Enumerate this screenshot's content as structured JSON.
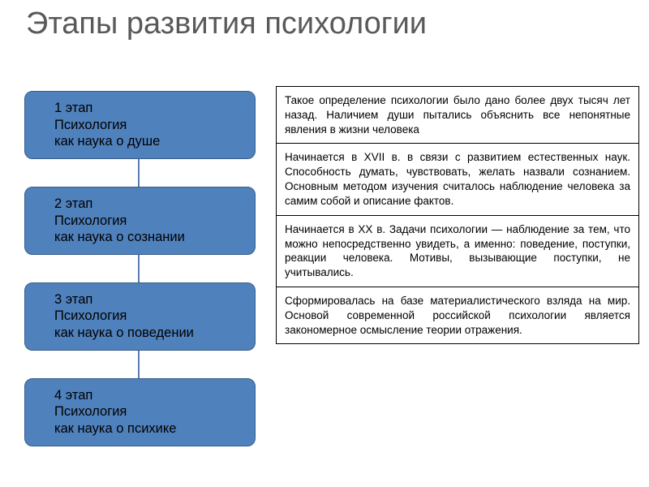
{
  "title": "Этапы развития психологии",
  "stages": [
    {
      "label_line1": "1 этап",
      "label_line2": "Психология",
      "label_line3": "как наука о душе"
    },
    {
      "label_line1": "2 этап",
      "label_line2": "Психология",
      "label_line3": "как наука о сознании"
    },
    {
      "label_line1": "3 этап",
      "label_line2": "Психология",
      "label_line3": "как наука о поведении"
    },
    {
      "label_line1": "4 этап",
      "label_line2": "Психология",
      "label_line3": "как наука о психике"
    }
  ],
  "descriptions": [
    "Такое определение психологии было дано более двух тысяч лет назад. Наличием души пытались объяснить все непонятные явления в жизни человека",
    "Начинается в XVII в. в связи с развитием естественных наук. Способность думать, чувствовать, желать назвали сознанием. Основным методом изучения считалось наблюдение человека за самим собой и описание фактов.",
    "Начинается в XX в. Задачи психологии — наблюдение за тем, что можно непосредственно увидеть, а именно: поведение, поступки, реакции человека. Мотивы, вызывающие поступки, не учитывались.",
    "Сформировалась на базе материалистического взляда на мир. Основой современной российской психологии является закономерное осмысление теории отражения."
  ],
  "style": {
    "title_color": "#595959",
    "title_fontsize": 38,
    "box_bg": "#4f81bd",
    "box_border": "#385d8a",
    "box_radius": 10,
    "box_text_color": "#000000",
    "box_fontsize": 16.5,
    "connector_color": "#5a7db0",
    "connector_width": 2,
    "connector_height": 34,
    "table_border_color": "#000000",
    "desc_fontsize": 13.5,
    "background": "#ffffff"
  }
}
